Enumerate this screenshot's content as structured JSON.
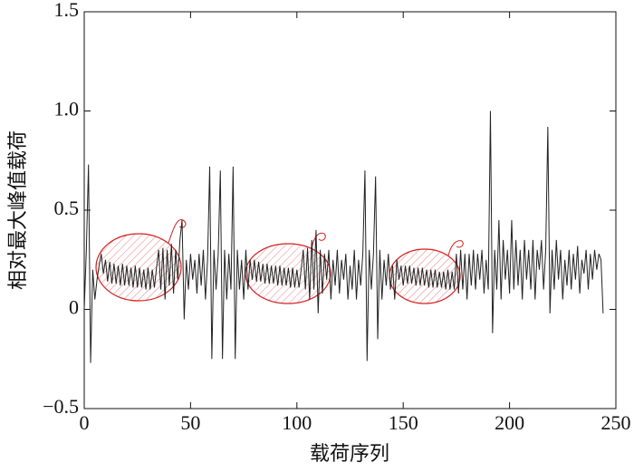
{
  "chart_data": {
    "type": "line",
    "xlabel": "载荷序列",
    "ylabel": "相对最大峰值载荷",
    "xlim": [
      0,
      250
    ],
    "xticks": [
      0,
      50,
      100,
      150,
      200,
      250
    ],
    "ylim": [
      -0.5,
      1.5
    ],
    "yticks": [
      {
        "value": -0.5,
        "label": "−0.5"
      },
      0,
      0.5,
      {
        "value": 1,
        "label": "1.0"
      },
      {
        "value": 1.5,
        "label": "1.5"
      }
    ],
    "color": "#222222",
    "x": [
      0,
      1,
      2,
      3,
      4,
      5,
      6,
      7,
      8,
      9,
      10,
      11,
      12,
      13,
      14,
      15,
      16,
      17,
      18,
      19,
      20,
      21,
      22,
      23,
      24,
      25,
      26,
      27,
      28,
      29,
      30,
      31,
      32,
      33,
      34,
      35,
      36,
      37,
      38,
      39,
      40,
      41,
      42,
      43,
      44,
      45,
      46,
      47,
      48,
      49,
      50,
      51,
      52,
      53,
      54,
      55,
      56,
      57,
      58,
      59,
      60,
      61,
      62,
      63,
      64,
      65,
      66,
      67,
      68,
      69,
      70,
      71,
      72,
      73,
      74,
      75,
      76,
      77,
      78,
      79,
      80,
      81,
      82,
      83,
      84,
      85,
      86,
      87,
      88,
      89,
      90,
      91,
      92,
      93,
      94,
      95,
      96,
      97,
      98,
      99,
      100,
      101,
      102,
      103,
      104,
      105,
      106,
      107,
      108,
      109,
      110,
      111,
      112,
      113,
      114,
      115,
      116,
      117,
      118,
      119,
      120,
      121,
      122,
      123,
      124,
      125,
      126,
      127,
      128,
      129,
      130,
      131,
      132,
      133,
      134,
      135,
      136,
      137,
      138,
      139,
      140,
      141,
      142,
      143,
      144,
      145,
      146,
      147,
      148,
      149,
      150,
      151,
      152,
      153,
      154,
      155,
      156,
      157,
      158,
      159,
      160,
      161,
      162,
      163,
      164,
      165,
      166,
      167,
      168,
      169,
      170,
      171,
      172,
      173,
      174,
      175,
      176,
      177,
      178,
      179,
      180,
      181,
      182,
      183,
      184,
      185,
      186,
      187,
      188,
      189,
      190,
      191,
      192,
      193,
      194,
      195,
      196,
      197,
      198,
      199,
      200,
      201,
      202,
      203,
      204,
      205,
      206,
      207,
      208,
      209,
      210,
      211,
      212,
      213,
      214,
      215,
      216,
      217,
      218,
      219,
      220,
      221,
      222,
      223,
      224,
      225,
      226,
      227,
      228,
      229,
      230,
      231,
      232,
      233,
      234,
      235,
      236,
      237,
      238,
      239,
      240,
      241,
      242,
      243,
      244
    ],
    "values": [
      0.0,
      0.3,
      0.73,
      -0.27,
      0.2,
      0.05,
      0.15,
      0.22,
      0.28,
      0.18,
      0.25,
      0.14,
      0.24,
      0.13,
      0.23,
      0.13,
      0.22,
      0.12,
      0.23,
      0.12,
      0.22,
      0.12,
      0.21,
      0.11,
      0.22,
      0.11,
      0.21,
      0.11,
      0.2,
      0.1,
      0.21,
      0.1,
      0.2,
      0.11,
      0.21,
      0.3,
      0.1,
      0.31,
      0.05,
      0.3,
      0.12,
      0.33,
      0.08,
      0.3,
      0.15,
      0.35,
      0.45,
      -0.05,
      0.25,
      0.1,
      0.28,
      0.15,
      0.25,
      0.08,
      0.28,
      0.12,
      0.3,
      0.05,
      0.25,
      0.72,
      -0.25,
      0.3,
      0.1,
      0.28,
      0.7,
      -0.25,
      0.3,
      0.05,
      0.28,
      0.1,
      0.72,
      -0.25,
      0.3,
      0.1,
      0.25,
      0.05,
      0.3,
      0.1,
      0.25,
      0.15,
      0.25,
      0.14,
      0.24,
      0.14,
      0.23,
      0.13,
      0.23,
      0.13,
      0.22,
      0.13,
      0.22,
      0.12,
      0.22,
      0.12,
      0.21,
      0.12,
      0.21,
      0.11,
      0.21,
      0.11,
      0.2,
      0.11,
      0.2,
      0.3,
      0.1,
      0.31,
      0.05,
      0.35,
      0.1,
      0.4,
      -0.02,
      0.3,
      0.08,
      0.28,
      0.15,
      0.3,
      0.05,
      0.25,
      0.12,
      0.3,
      0.08,
      0.25,
      0.15,
      0.28,
      0.05,
      0.22,
      0.1,
      0.3,
      0.05,
      0.25,
      0.12,
      0.28,
      0.7,
      -0.26,
      0.3,
      0.1,
      0.28,
      0.67,
      -0.15,
      0.3,
      0.05,
      0.25,
      0.12,
      0.28,
      0.1,
      0.22,
      0.05,
      0.25,
      0.15,
      0.22,
      0.12,
      0.22,
      0.13,
      0.22,
      0.13,
      0.21,
      0.12,
      0.21,
      0.12,
      0.21,
      0.12,
      0.2,
      0.11,
      0.2,
      0.11,
      0.2,
      0.11,
      0.19,
      0.11,
      0.19,
      0.1,
      0.2,
      0.1,
      0.19,
      0.1,
      0.28,
      0.08,
      0.3,
      0.1,
      0.28,
      0.05,
      0.28,
      0.12,
      0.3,
      0.1,
      0.28,
      0.15,
      0.3,
      0.08,
      0.25,
      0.1,
      1.0,
      -0.12,
      0.3,
      0.1,
      0.45,
      0.05,
      0.35,
      0.15,
      0.3,
      0.08,
      0.45,
      0.1,
      0.35,
      0.12,
      0.3,
      0.05,
      0.35,
      0.15,
      0.3,
      0.1,
      0.35,
      0.05,
      0.3,
      0.2,
      0.35,
      0.1,
      0.3,
      0.92,
      -0.02,
      0.3,
      0.1,
      0.35,
      0.15,
      0.3,
      0.05,
      0.25,
      0.12,
      0.3,
      0.1,
      0.28,
      0.15,
      0.32,
      0.08,
      0.25,
      0.18,
      0.3,
      0.1,
      0.28,
      0.15,
      0.3,
      0.2,
      0.28,
      0.25,
      -0.02
    ]
  }
}
